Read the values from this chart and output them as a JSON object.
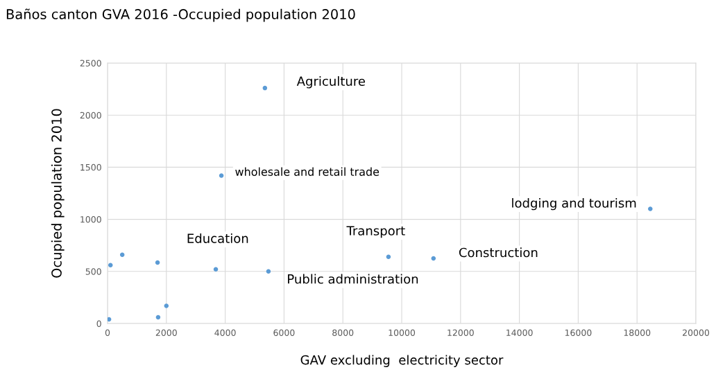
{
  "chart_data": {
    "type": "scatter",
    "title": "Baños canton GVA 2016 -Occupied population 2010",
    "xlabel": "GAV excluding  electricity sector",
    "ylabel": "Ocupied population 2010",
    "x": [
      5350,
      3870,
      18450,
      500,
      100,
      1700,
      3680,
      5470,
      9550,
      11080,
      2000,
      1720,
      50
    ],
    "series": [
      {
        "color": "#5b9bd5",
        "values": [
          2260,
          1420,
          1100,
          660,
          560,
          585,
          520,
          500,
          640,
          625,
          170,
          60,
          40
        ]
      }
    ],
    "xlim": [
      0,
      20000
    ],
    "xticks": [
      0,
      2000,
      4000,
      6000,
      8000,
      10000,
      12000,
      14000,
      16000,
      18000,
      20000
    ],
    "ylim": [
      0,
      2500
    ],
    "yticks": [
      0,
      500,
      1000,
      1500,
      2000,
      2500
    ],
    "grid": true,
    "marker": "circle",
    "annotations": [
      {
        "text": "Agriculture",
        "x": 5350,
        "y": 2260
      },
      {
        "text": "wholesale and retail trade",
        "x": 3870,
        "y": 1420
      },
      {
        "text": "lodging and tourism",
        "x": 18450,
        "y": 1100
      },
      {
        "text": "Education",
        "x": 3680,
        "y": 520
      },
      {
        "text": "Transport",
        "x": 9550,
        "y": 640
      },
      {
        "text": "Construction",
        "x": 11080,
        "y": 625
      },
      {
        "text": "Public administration",
        "x": 5470,
        "y": 500
      }
    ]
  }
}
